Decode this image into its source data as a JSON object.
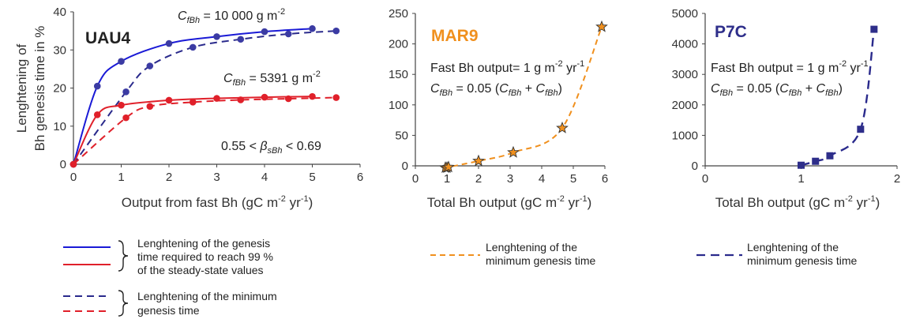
{
  "chart_data": [
    {
      "type": "line",
      "title": "UAU4",
      "xlabel_parts": [
        "Output from fast Bh (gC m",
        "-2",
        " yr",
        "-1",
        ")"
      ],
      "ylabel_lines": [
        "Lenghtening of",
        "Bh genesis time in %"
      ],
      "xlim": [
        0,
        6
      ],
      "ylim": [
        0,
        40
      ],
      "xticks": [
        "0",
        "1",
        "2",
        "3",
        "4",
        "5",
        "6"
      ],
      "yticks": [
        "0",
        "10",
        "20",
        "30",
        "40"
      ],
      "annotations": {
        "high": {
          "prefix": "C",
          "sub": "fBh",
          "text": " = 10 000 g m",
          "sup": "-2",
          "color": "#3b3ba3"
        },
        "low": {
          "prefix": "C",
          "sub": "fBh",
          "text": " = 5391 g m",
          "sup": "-2",
          "color": "#e0202a"
        },
        "beta": {
          "left": "0.55 < ",
          "prefix": "β",
          "sub": "sBh",
          "right": " < 0.69"
        }
      },
      "series": [
        {
          "name": "",
          "style": "solid",
          "color": "#1a1ad6",
          "marker_color": "#3b3ba3",
          "x": [
            0,
            0.5,
            1,
            2,
            3,
            4,
            5
          ],
          "y": [
            0,
            20.5,
            27,
            31.7,
            33.5,
            34.8,
            35.6
          ]
        },
        {
          "name": "",
          "style": "dashed",
          "color": "#2a2a8c",
          "marker_color": "#3b3ba3",
          "x": [
            0,
            1.1,
            1.6,
            2.5,
            3.5,
            4.5,
            5.5
          ],
          "y": [
            0,
            19,
            25.8,
            30.7,
            32.8,
            34.2,
            35
          ]
        },
        {
          "name": "",
          "style": "solid",
          "color": "#e0202a",
          "marker_color": "#e0202a",
          "x": [
            0,
            0.5,
            1,
            2,
            3,
            4,
            5
          ],
          "y": [
            0,
            13,
            15.5,
            16.8,
            17.3,
            17.6,
            17.8
          ]
        },
        {
          "name": "",
          "style": "dashed",
          "color": "#e0202a",
          "marker_color": "#e0202a",
          "x": [
            0,
            1.1,
            1.6,
            2.5,
            3.5,
            4.5,
            5.5
          ],
          "y": [
            0,
            12.2,
            15.2,
            16.3,
            16.9,
            17.2,
            17.5
          ]
        }
      ]
    },
    {
      "type": "line",
      "title": "MAR9",
      "title_color": "#f0901e",
      "xlabel_parts": [
        "Total Bh output (gC m",
        "-2",
        " yr",
        "-1",
        ")"
      ],
      "xlim": [
        0,
        6
      ],
      "ylim": [
        0,
        250
      ],
      "xticks": [
        "0",
        "1",
        "2",
        "3",
        "4",
        "5",
        "6"
      ],
      "yticks": [
        "0",
        "50",
        "100",
        "150",
        "200",
        "250"
      ],
      "annotations": {
        "line1": {
          "text": "Fast Bh output= 1 g m",
          "sup1": "-2",
          "mid": " yr",
          "sup2": "-1"
        },
        "line2": {
          "prefix": "C",
          "sub": "fBh",
          "text": " = 0.05 (",
          "prefix2": "C",
          "sub2": "fBh",
          "plus": " + ",
          "prefix3": "C",
          "sub3": "fBh",
          "close": ")"
        }
      },
      "series": [
        {
          "name": "",
          "style": "dashed",
          "color": "#f0901e",
          "marker": "star",
          "x": [
            0.95,
            1.0,
            1.05,
            2.0,
            3.1,
            4.65,
            5.9
          ],
          "y": [
            -3,
            -3,
            -2,
            8,
            22,
            62,
            228
          ]
        }
      ]
    },
    {
      "type": "line",
      "title": "P7C",
      "title_color": "#2e2e8a",
      "xlabel_parts": [
        "Total Bh output (gC m",
        "-2",
        " yr",
        "-1",
        ")"
      ],
      "xlim": [
        0,
        2
      ],
      "ylim": [
        0,
        5000
      ],
      "xticks": [
        "0",
        "1",
        "2"
      ],
      "yticks": [
        "0",
        "1000",
        "2000",
        "3000",
        "4000",
        "5000"
      ],
      "annotations": {
        "line1": {
          "text": "Fast Bh output = 1 g m",
          "sup1": "-2",
          "mid": " yr",
          "sup2": "-1"
        },
        "line2": {
          "prefix": "C",
          "sub": "fBh",
          "text": " = 0.05 (",
          "prefix2": "C",
          "sub2": "fBh",
          "plus": " + ",
          "prefix3": "C",
          "sub3": "fBh",
          "close": ")"
        }
      },
      "series": [
        {
          "name": "",
          "style": "dashed",
          "color": "#2a2a8c",
          "marker": "square",
          "x": [
            1.0,
            1.15,
            1.3,
            1.62,
            1.76
          ],
          "y": [
            20,
            150,
            330,
            1200,
            4480
          ]
        }
      ]
    }
  ],
  "legend": {
    "group1_lines": [
      "Lenghtening of the genesis",
      "time required to reach 99 %",
      "of the steady-state values"
    ],
    "group2_lines": [
      "Lenghtening of the minimum",
      "genesis time"
    ],
    "mar9_lines": [
      "Lenghtening of the",
      "minimum genesis time"
    ],
    "p7c_lines": [
      "Lenghtening of the",
      "minimum genesis time"
    ],
    "colors": {
      "blue_solid": "#1a1ad6",
      "red_solid": "#e0202a",
      "blue_dashed": "#2a2a8c",
      "red_dashed": "#e0202a",
      "orange": "#f0901e",
      "navy": "#2a2a8c"
    }
  }
}
